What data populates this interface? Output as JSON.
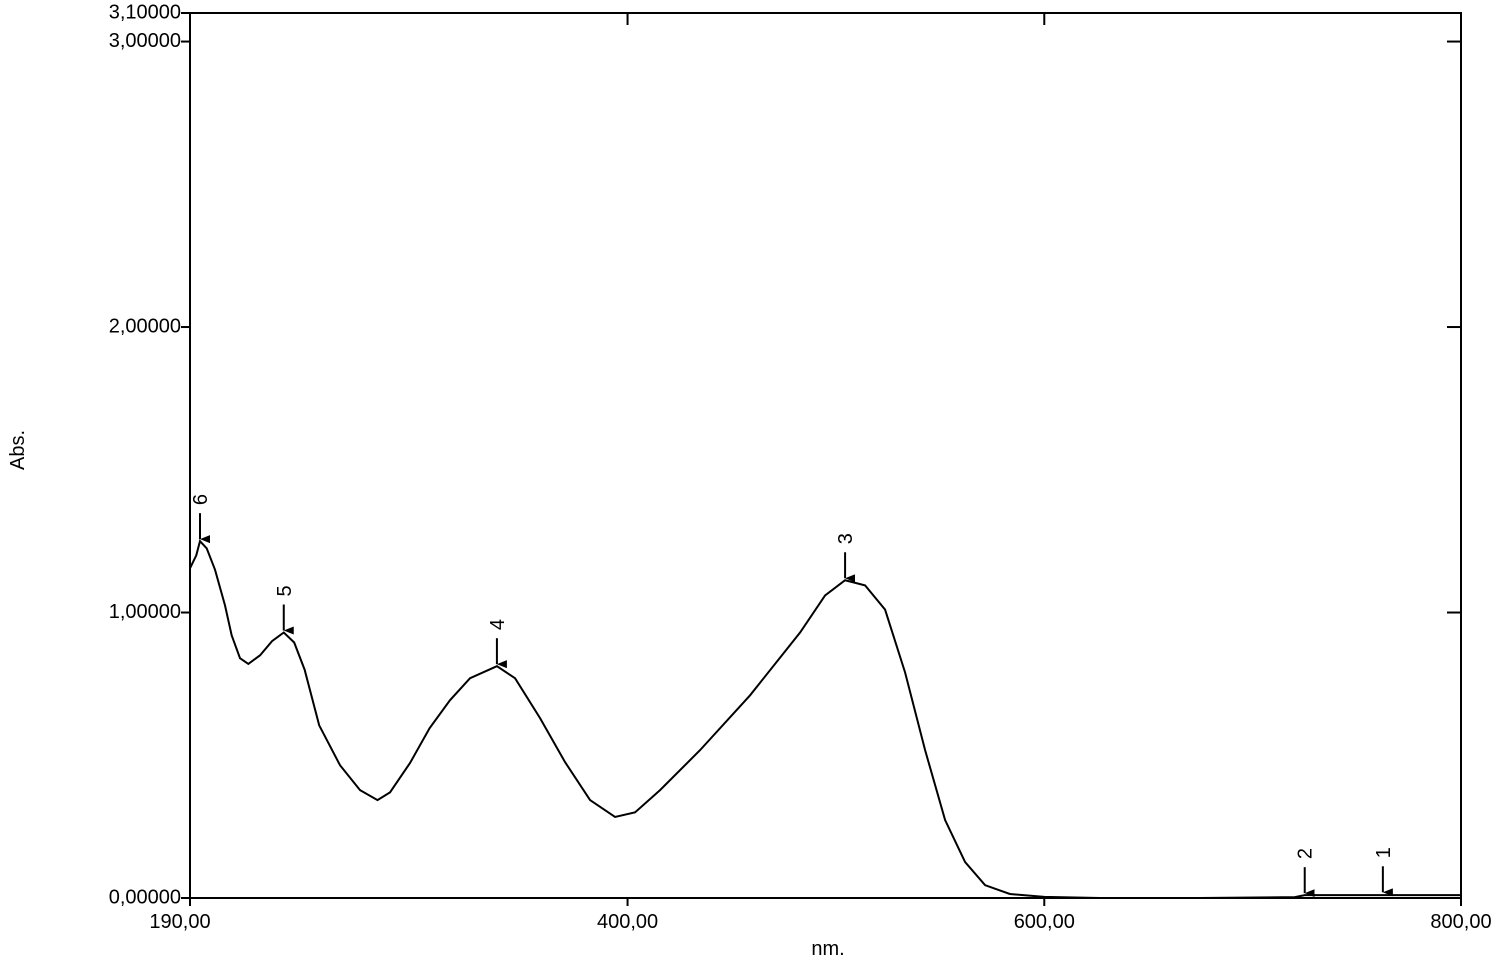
{
  "chart_data": {
    "type": "line",
    "x_label": "nm.",
    "y_label": "Abs.",
    "xlim": [
      190,
      800
    ],
    "ylim": [
      0,
      3.1
    ],
    "xticks": [
      {
        "value": 190,
        "label": "190,00"
      },
      {
        "value": 400,
        "label": "400,00"
      },
      {
        "value": 600,
        "label": "600,00"
      },
      {
        "value": 800,
        "label": "800,00"
      }
    ],
    "yticks": [
      {
        "value": 0,
        "label": "0,00000"
      },
      {
        "value": 1,
        "label": "1,00000"
      },
      {
        "value": 2,
        "label": "2,00000"
      },
      {
        "value": 3,
        "label": "3,00000"
      },
      {
        "value": 3.1,
        "label": "3,10000"
      }
    ],
    "series": [
      {
        "color": "#000000",
        "x": [
          190,
          193,
          194.8,
          198,
          202,
          206.8,
          210,
          214,
          218,
          223.6,
          229.4,
          235,
          240,
          245,
          252,
          262,
          271.6,
          280,
          286,
          295.6,
          305,
          314.8,
          324.4,
          337.3,
          346,
          358,
          370,
          382,
          394,
          403.6,
          415.6,
          434.8,
          458.8,
          482.8,
          494.8,
          504.4,
          514,
          523.6,
          533.2,
          542.8,
          552.4,
          562,
          571.6,
          583.5,
          600,
          626.7,
          674.7,
          720.3,
          725,
          800
        ],
        "values": [
          1.155,
          1.2,
          1.25,
          1.225,
          1.15,
          1.025,
          0.92,
          0.84,
          0.82,
          0.85,
          0.9,
          0.93,
          0.895,
          0.8,
          0.605,
          0.465,
          0.378,
          0.343,
          0.37,
          0.473,
          0.595,
          0.693,
          0.77,
          0.812,
          0.77,
          0.63,
          0.476,
          0.343,
          0.284,
          0.3,
          0.378,
          0.518,
          0.71,
          0.93,
          1.06,
          1.113,
          1.095,
          1.01,
          0.79,
          0.518,
          0.273,
          0.126,
          0.045,
          0.014,
          0.004,
          0,
          0,
          0.003,
          0.01,
          0.01
        ]
      }
    ],
    "peaks": [
      {
        "label": "1",
        "x": 762.5,
        "y": 0.013
      },
      {
        "label": "2",
        "x": 725,
        "y": 0.01
      },
      {
        "label": "3",
        "x": 504.4,
        "y": 1.113
      },
      {
        "label": "4",
        "x": 337.3,
        "y": 0.812
      },
      {
        "label": "5",
        "x": 235,
        "y": 0.93
      },
      {
        "label": "6",
        "x": 194.8,
        "y": 1.25
      }
    ]
  }
}
